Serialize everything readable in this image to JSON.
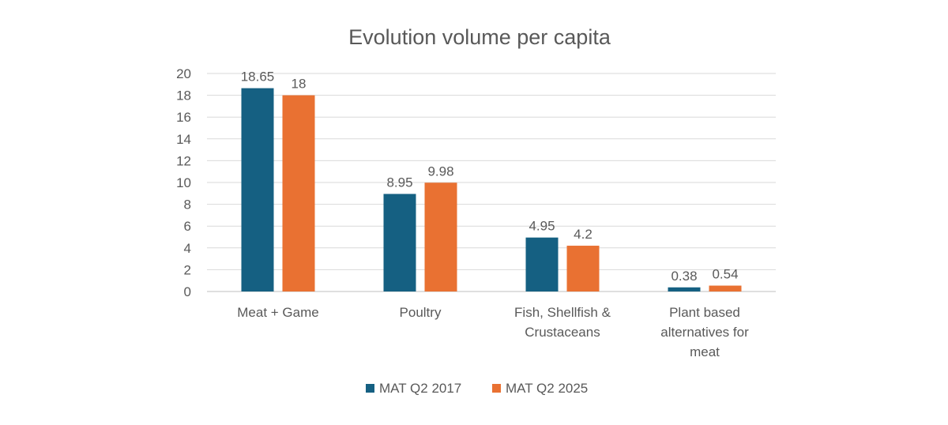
{
  "chart_data": {
    "type": "bar",
    "title": "Evolution volume per capita",
    "categories": [
      [
        "Meat + Game"
      ],
      [
        "Poultry"
      ],
      [
        "Fish, Shellfish &",
        "Crustaceans"
      ],
      [
        "Plant based",
        "alternatives for",
        "meat"
      ]
    ],
    "series": [
      {
        "name": "MAT Q2 2017",
        "color": "#156082",
        "values": [
          18.65,
          8.95,
          4.95,
          0.38
        ]
      },
      {
        "name": "MAT Q2 2025",
        "color": "#E97132",
        "values": [
          18,
          9.98,
          4.2,
          0.54
        ]
      }
    ],
    "ylim": [
      0,
      20
    ],
    "yticks": [
      0,
      2,
      4,
      6,
      8,
      10,
      12,
      14,
      16,
      18,
      20
    ],
    "grid": true,
    "legend": "bottom",
    "data_labels": true
  }
}
